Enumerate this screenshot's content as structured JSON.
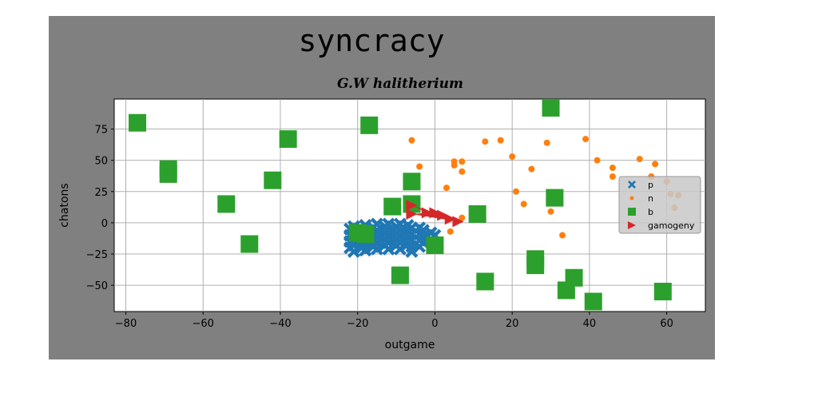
{
  "chart_data": {
    "type": "scatter",
    "title": "syncracy",
    "subtitle": "G.W halitherium",
    "xlabel": "outgame",
    "ylabel": "chatons",
    "xlim": [
      -83,
      70
    ],
    "ylim": [
      -71,
      99
    ],
    "xticks": [
      -80,
      -60,
      -40,
      -20,
      0,
      20,
      40,
      60
    ],
    "yticks": [
      -50,
      -25,
      0,
      25,
      50,
      75
    ],
    "xtick_labels": [
      "−80",
      "−60",
      "−40",
      "−20",
      "0",
      "20",
      "40",
      "60"
    ],
    "ytick_labels": [
      "−50",
      "−25",
      "0",
      "25",
      "50",
      "75"
    ],
    "grid": true,
    "legend_position": "right",
    "series": [
      {
        "name": "p",
        "marker": "x-filled",
        "color": "#1f77b4",
        "points": [
          [
            -22,
            -5
          ],
          [
            -22,
            -10
          ],
          [
            -22,
            -15
          ],
          [
            -22,
            -20
          ],
          [
            -21,
            -3
          ],
          [
            -21,
            -8
          ],
          [
            -21,
            -13
          ],
          [
            -21,
            -18
          ],
          [
            -21,
            -23
          ],
          [
            -19,
            -5
          ],
          [
            -19,
            -10
          ],
          [
            -19,
            -15
          ],
          [
            -19,
            -20
          ],
          [
            -18,
            -2
          ],
          [
            -18,
            -7
          ],
          [
            -18,
            -12
          ],
          [
            -18,
            -17
          ],
          [
            -18,
            -22
          ],
          [
            -16,
            -4
          ],
          [
            -16,
            -9
          ],
          [
            -16,
            -14
          ],
          [
            -16,
            -19
          ],
          [
            -15,
            -1
          ],
          [
            -15,
            -6
          ],
          [
            -15,
            -11
          ],
          [
            -15,
            -16
          ],
          [
            -15,
            -21
          ],
          [
            -13,
            -3
          ],
          [
            -13,
            -8
          ],
          [
            -13,
            -13
          ],
          [
            -13,
            -18
          ],
          [
            -12,
            -1
          ],
          [
            -12,
            -6
          ],
          [
            -12,
            -11
          ],
          [
            -12,
            -16
          ],
          [
            -12,
            -21
          ],
          [
            -10,
            -3
          ],
          [
            -10,
            -8
          ],
          [
            -10,
            -13
          ],
          [
            -10,
            -18
          ],
          [
            -9,
            -1
          ],
          [
            -9,
            -6
          ],
          [
            -9,
            -11
          ],
          [
            -9,
            -16
          ],
          [
            -9,
            -21
          ],
          [
            -7,
            -2
          ],
          [
            -7,
            -7
          ],
          [
            -7,
            -12
          ],
          [
            -7,
            -17
          ],
          [
            -6,
            -4
          ],
          [
            -6,
            -9
          ],
          [
            -6,
            -14
          ],
          [
            -6,
            -19
          ],
          [
            -6,
            -23
          ],
          [
            -4,
            -4
          ],
          [
            -4,
            -9
          ],
          [
            -4,
            -14
          ],
          [
            -4,
            -19
          ],
          [
            -3,
            -6
          ],
          [
            -3,
            -11
          ],
          [
            -3,
            -16
          ],
          [
            -1,
            -8
          ],
          [
            -1,
            -13
          ],
          [
            0,
            -10
          ]
        ]
      },
      {
        "name": "n",
        "marker": "circle",
        "color": "#ff7f0e",
        "points": [
          [
            -6,
            66
          ],
          [
            -4,
            45
          ],
          [
            3,
            28
          ],
          [
            5,
            49
          ],
          [
            5,
            46
          ],
          [
            7,
            49
          ],
          [
            7,
            41
          ],
          [
            4,
            -7
          ],
          [
            7,
            4
          ],
          [
            13,
            65
          ],
          [
            17,
            66
          ],
          [
            20,
            53
          ],
          [
            21,
            25
          ],
          [
            23,
            15
          ],
          [
            25,
            43
          ],
          [
            29,
            64
          ],
          [
            30,
            9
          ],
          [
            33,
            -10
          ],
          [
            39,
            67
          ],
          [
            42,
            50
          ],
          [
            46,
            44
          ],
          [
            46,
            37
          ],
          [
            53,
            51
          ],
          [
            56,
            37
          ],
          [
            57,
            47
          ],
          [
            60,
            33
          ],
          [
            61,
            23
          ],
          [
            62,
            12
          ],
          [
            63,
            22
          ]
        ]
      },
      {
        "name": "b",
        "marker": "square",
        "color": "#2ca02c",
        "points": [
          [
            -77,
            80
          ],
          [
            -69,
            43
          ],
          [
            -69,
            39
          ],
          [
            -54,
            15
          ],
          [
            -48,
            -17
          ],
          [
            -42,
            34
          ],
          [
            -38,
            67
          ],
          [
            -20,
            -8
          ],
          [
            -18,
            -9
          ],
          [
            -17,
            78
          ],
          [
            -11,
            13
          ],
          [
            -9,
            -42
          ],
          [
            -6,
            33
          ],
          [
            -6,
            15
          ],
          [
            0,
            -18
          ],
          [
            11,
            7
          ],
          [
            13,
            -47
          ],
          [
            26,
            -29
          ],
          [
            26,
            -34
          ],
          [
            30,
            92
          ],
          [
            31,
            20
          ],
          [
            34,
            -54
          ],
          [
            36,
            -44
          ],
          [
            41,
            -63
          ],
          [
            59,
            -55
          ]
        ]
      },
      {
        "name": "gamogeny",
        "marker": "triangle-right",
        "color": "#d62728",
        "points": [
          [
            -6,
            14
          ],
          [
            -6,
            7
          ],
          [
            -2,
            8
          ],
          [
            0,
            8
          ],
          [
            2,
            6
          ],
          [
            4,
            3
          ],
          [
            6,
            1
          ]
        ]
      }
    ]
  }
}
